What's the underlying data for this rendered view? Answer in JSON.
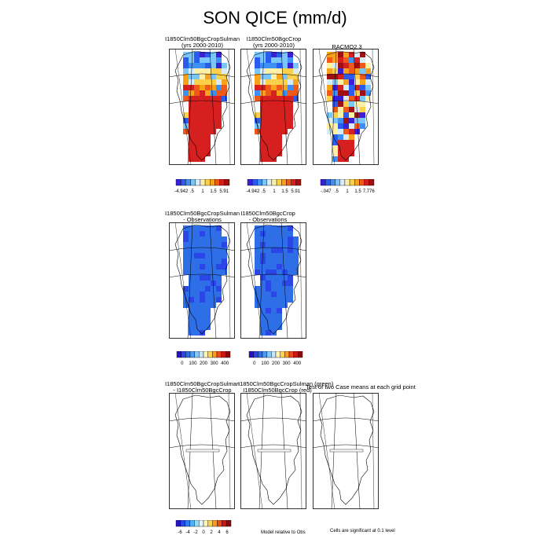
{
  "page": {
    "title": "SON QICE (mm/d)"
  },
  "row1": {
    "panels": [
      {
        "title1": "I1850Clm50BgcCropSulman",
        "title2": "(yrs 2000-2010)"
      },
      {
        "title1": "I1850Clm50BgcCrop",
        "title2": "(yrs 2000-2010)"
      },
      {
        "title1": "RACMO2.3",
        "title2": ""
      }
    ],
    "colorbars": [
      {
        "labels": [
          "-4.942",
          ".5",
          "1",
          "1.5",
          "5.91"
        ]
      },
      {
        "labels": [
          "-4.942",
          ".5",
          "1",
          "1.5",
          "5.91"
        ]
      },
      {
        "labels": [
          "-.047",
          ".5",
          "1",
          "1.5",
          "7.776"
        ]
      }
    ]
  },
  "row2": {
    "panels": [
      {
        "title1": "I1850Clm50BgcCropSulman",
        "title2": "- Observations"
      },
      {
        "title1": "I1850Clm50BgcCrop",
        "title2": "- Observations"
      }
    ],
    "colorbars": [
      {
        "labels": [
          "0",
          "100",
          "200",
          "300",
          "400"
        ]
      },
      {
        "labels": [
          "0",
          "100",
          "200",
          "300",
          "400"
        ]
      }
    ]
  },
  "row3": {
    "panels": [
      {
        "title1": "I1850Clm50BgcCropSulman",
        "title2": "- I1850Clm50BgcCrop"
      },
      {
        "title1": "I1850Clm50BgcCropSulman (green)",
        "title2": "I1850Clm50BgcCrop (red)"
      },
      {
        "title1": "Test of two Case means at each grid point",
        "title2": ""
      }
    ],
    "colorbar": {
      "labels": [
        "-6",
        "-4",
        "-2",
        "0",
        "2",
        "4",
        "6"
      ]
    },
    "note_model": "Model relative to Obs",
    "note_sig": "Cells are significant at 0.1 level"
  },
  "colors": {
    "abs_scale": [
      "#3a1fd6",
      "#2a5cf0",
      "#3e8ff6",
      "#79c6fb",
      "#d8ecf8",
      "#fff0a8",
      "#fcd04a",
      "#f7a21b",
      "#ef5a19",
      "#d62020",
      "#a01010"
    ],
    "diff_scale": [
      "#2a12c8",
      "#2a46e6",
      "#2f7cf4",
      "#4fb0f8",
      "#97dcf9",
      "#e6f4fb",
      "#fff4b4",
      "#ffd24a",
      "#fb9a22",
      "#ee4a19",
      "#c81818",
      "#8e0a0a"
    ],
    "bias_scale": [
      "#2a12c8",
      "#2a46e6",
      "#2e6fe8",
      "#4d9af3",
      "#87c7f8",
      "#c7e7fb",
      "#fff4b4",
      "#ffd24a",
      "#fb9a22",
      "#ee4a19",
      "#c81818",
      "#8e0a0a"
    ]
  }
}
